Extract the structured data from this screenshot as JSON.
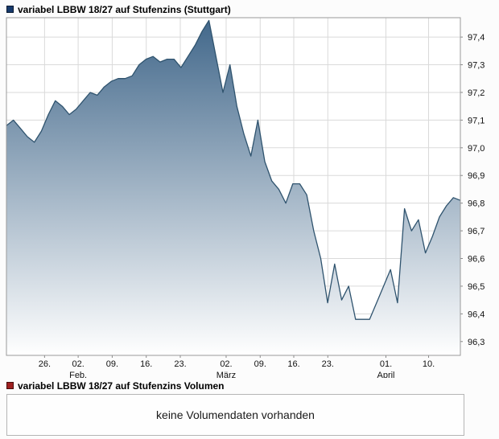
{
  "header": {
    "title": "variabel LBBW 18/27 auf Stufenzins (Stuttgart)",
    "legend_color": "#16396b"
  },
  "volume": {
    "title": "variabel LBBW 18/27 auf Stufenzins Volumen",
    "legend_color": "#9e2020",
    "empty_message": "keine Volumendaten vorhanden"
  },
  "chart_data": {
    "type": "area",
    "title": "variabel LBBW 18/27 auf Stufenzins (Stuttgart)",
    "xlabel": "",
    "ylabel": "",
    "ylim": [
      96.25,
      97.47
    ],
    "grid": true,
    "legend_position": "none",
    "plot_bg": "#ffffff",
    "grid_color": "#dadada",
    "border_color": "#9a9a9a",
    "line_color": "#2f536e",
    "area_gradient": [
      "#41678a",
      "#ffffff"
    ],
    "y_ticks": [
      {
        "v": 97.4,
        "label": "97,4"
      },
      {
        "v": 97.3,
        "label": "97,3"
      },
      {
        "v": 97.2,
        "label": "97,2"
      },
      {
        "v": 97.1,
        "label": "97,1"
      },
      {
        "v": 97.0,
        "label": "97,0"
      },
      {
        "v": 96.9,
        "label": "96,9"
      },
      {
        "v": 96.8,
        "label": "96,8"
      },
      {
        "v": 96.7,
        "label": "96,7"
      },
      {
        "v": 96.6,
        "label": "96,6"
      },
      {
        "v": 96.5,
        "label": "96,5"
      },
      {
        "v": 96.4,
        "label": "96,4"
      },
      {
        "v": 96.3,
        "label": "96,3"
      }
    ],
    "x_ticks": [
      {
        "pos": 0.084,
        "label": "26."
      },
      {
        "pos": 0.158,
        "label": "02.",
        "month": "Feb."
      },
      {
        "pos": 0.233,
        "label": "09."
      },
      {
        "pos": 0.308,
        "label": "16."
      },
      {
        "pos": 0.383,
        "label": "23."
      },
      {
        "pos": 0.484,
        "label": "02.",
        "month": "März"
      },
      {
        "pos": 0.559,
        "label": "09."
      },
      {
        "pos": 0.633,
        "label": "16."
      },
      {
        "pos": 0.708,
        "label": "23."
      },
      {
        "pos": 0.836,
        "label": "01.",
        "month": "April"
      },
      {
        "pos": 0.93,
        "label": "10."
      }
    ],
    "values": [
      97.08,
      97.1,
      97.07,
      97.04,
      97.02,
      97.06,
      97.12,
      97.17,
      97.15,
      97.12,
      97.14,
      97.17,
      97.2,
      97.19,
      97.22,
      97.24,
      97.25,
      97.25,
      97.26,
      97.3,
      97.32,
      97.33,
      97.31,
      97.32,
      97.32,
      97.29,
      97.33,
      97.37,
      97.42,
      97.46,
      97.33,
      97.2,
      97.3,
      97.15,
      97.05,
      96.97,
      97.1,
      96.95,
      96.88,
      96.85,
      96.8,
      96.87,
      96.87,
      96.83,
      96.7,
      96.6,
      96.44,
      96.58,
      96.45,
      96.5,
      96.38,
      96.38,
      96.38,
      96.44,
      96.5,
      96.56,
      96.44,
      96.78,
      96.7,
      96.74,
      96.62,
      96.68,
      96.75,
      96.79,
      96.82,
      96.81
    ]
  }
}
